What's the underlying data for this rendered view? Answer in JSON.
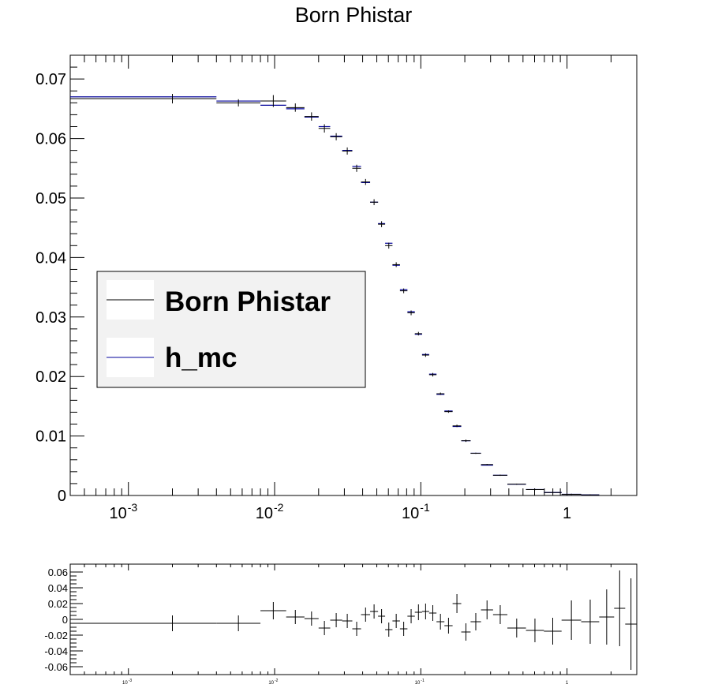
{
  "title": "Born Phistar",
  "colors": {
    "data": "#000000",
    "mc": "#000099",
    "legend_bg": "#f2f2f2",
    "frame": "#000000"
  },
  "chart_data": [
    {
      "type": "line",
      "title": "Born Phistar",
      "xscale": "log",
      "xlim": [
        0.0004,
        3.0
      ],
      "ylim": [
        0,
        0.074
      ],
      "x_ticks": [
        {
          "value": 0.001,
          "base": "10",
          "exp": "-3"
        },
        {
          "value": 0.01,
          "base": "10",
          "exp": "-2"
        },
        {
          "value": 0.1,
          "base": "10",
          "exp": "-1"
        },
        {
          "value": 1,
          "base": "1",
          "exp": ""
        }
      ],
      "y_ticks": [
        "0",
        "0.01",
        "0.02",
        "0.03",
        "0.04",
        "0.05",
        "0.06",
        "0.07"
      ],
      "legend": {
        "placement": "left-middle",
        "entries": [
          "Born Phistar",
          "h_mc"
        ]
      },
      "series": [
        {
          "name": "Born Phistar",
          "bins": [
            {
              "lo": 0.0,
              "hi": 0.004,
              "y": 0.0667,
              "err": 0.0008
            },
            {
              "lo": 0.004,
              "hi": 0.008,
              "y": 0.066,
              "err": 0.0006
            },
            {
              "lo": 0.008,
              "hi": 0.012,
              "y": 0.0663,
              "err": 0.001
            },
            {
              "lo": 0.012,
              "hi": 0.016,
              "y": 0.0652,
              "err": 0.0007
            },
            {
              "lo": 0.016,
              "hi": 0.02,
              "y": 0.0637,
              "err": 0.0007
            },
            {
              "lo": 0.02,
              "hi": 0.024,
              "y": 0.0617,
              "err": 0.0007
            },
            {
              "lo": 0.024,
              "hi": 0.029,
              "y": 0.0603,
              "err": 0.0006
            },
            {
              "lo": 0.029,
              "hi": 0.034,
              "y": 0.0579,
              "err": 0.0006
            },
            {
              "lo": 0.034,
              "hi": 0.039,
              "y": 0.055,
              "err": 0.0006
            },
            {
              "lo": 0.039,
              "hi": 0.045,
              "y": 0.0527,
              "err": 0.0005
            },
            {
              "lo": 0.045,
              "hi": 0.051,
              "y": 0.0493,
              "err": 0.0005
            },
            {
              "lo": 0.051,
              "hi": 0.057,
              "y": 0.0456,
              "err": 0.0005
            },
            {
              "lo": 0.057,
              "hi": 0.064,
              "y": 0.042,
              "err": 0.0005
            },
            {
              "lo": 0.064,
              "hi": 0.072,
              "y": 0.0388,
              "err": 0.0004
            },
            {
              "lo": 0.072,
              "hi": 0.081,
              "y": 0.0344,
              "err": 0.0004
            },
            {
              "lo": 0.081,
              "hi": 0.091,
              "y": 0.0307,
              "err": 0.0004
            },
            {
              "lo": 0.091,
              "hi": 0.102,
              "y": 0.0272,
              "err": 0.0003
            },
            {
              "lo": 0.102,
              "hi": 0.114,
              "y": 0.0236,
              "err": 0.0003
            },
            {
              "lo": 0.114,
              "hi": 0.128,
              "y": 0.0203,
              "err": 0.0003
            },
            {
              "lo": 0.128,
              "hi": 0.145,
              "y": 0.0171,
              "err": 0.0002
            },
            {
              "lo": 0.145,
              "hi": 0.165,
              "y": 0.0141,
              "err": 0.0002
            },
            {
              "lo": 0.165,
              "hi": 0.189,
              "y": 0.0117,
              "err": 0.0002
            },
            {
              "lo": 0.189,
              "hi": 0.219,
              "y": 0.0092,
              "err": 0.0002
            },
            {
              "lo": 0.219,
              "hi": 0.258,
              "y": 0.0071,
              "err": 0.0001
            },
            {
              "lo": 0.258,
              "hi": 0.312,
              "y": 0.0052,
              "err": 0.0001
            },
            {
              "lo": 0.312,
              "hi": 0.391,
              "y": 0.0034,
              "err": 0.0001
            },
            {
              "lo": 0.391,
              "hi": 0.524,
              "y": 0.0019,
              "err": 0.0001
            },
            {
              "lo": 0.524,
              "hi": 0.695,
              "y": 0.001,
              "err": 0.0001
            },
            {
              "lo": 0.695,
              "hi": 0.918,
              "y": 0.0005,
              "err": 0.0001
            },
            {
              "lo": 0.918,
              "hi": 1.25,
              "y": 0.0002,
              "err": 0.0001
            },
            {
              "lo": 1.25,
              "hi": 1.66,
              "y": 0.0001,
              "err": 0.0001
            }
          ]
        },
        {
          "name": "h_mc",
          "bins": [
            {
              "lo": 0.0,
              "hi": 0.004,
              "y": 0.067
            },
            {
              "lo": 0.004,
              "hi": 0.008,
              "y": 0.0663
            },
            {
              "lo": 0.008,
              "hi": 0.012,
              "y": 0.0656
            },
            {
              "lo": 0.012,
              "hi": 0.016,
              "y": 0.065
            },
            {
              "lo": 0.016,
              "hi": 0.02,
              "y": 0.0636
            },
            {
              "lo": 0.02,
              "hi": 0.024,
              "y": 0.062
            },
            {
              "lo": 0.024,
              "hi": 0.029,
              "y": 0.0604
            },
            {
              "lo": 0.029,
              "hi": 0.034,
              "y": 0.058
            },
            {
              "lo": 0.034,
              "hi": 0.039,
              "y": 0.0553
            },
            {
              "lo": 0.039,
              "hi": 0.045,
              "y": 0.0526
            },
            {
              "lo": 0.045,
              "hi": 0.051,
              "y": 0.0493
            },
            {
              "lo": 0.051,
              "hi": 0.057,
              "y": 0.0457
            },
            {
              "lo": 0.057,
              "hi": 0.064,
              "y": 0.0424
            },
            {
              "lo": 0.064,
              "hi": 0.072,
              "y": 0.0387
            },
            {
              "lo": 0.072,
              "hi": 0.081,
              "y": 0.0346
            },
            {
              "lo": 0.081,
              "hi": 0.091,
              "y": 0.0309
            },
            {
              "lo": 0.091,
              "hi": 0.102,
              "y": 0.0271
            },
            {
              "lo": 0.102,
              "hi": 0.114,
              "y": 0.0237
            },
            {
              "lo": 0.114,
              "hi": 0.128,
              "y": 0.0204
            },
            {
              "lo": 0.128,
              "hi": 0.145,
              "y": 0.017
            },
            {
              "lo": 0.145,
              "hi": 0.165,
              "y": 0.0142
            },
            {
              "lo": 0.165,
              "hi": 0.189,
              "y": 0.0116
            },
            {
              "lo": 0.189,
              "hi": 0.219,
              "y": 0.0092
            },
            {
              "lo": 0.219,
              "hi": 0.258,
              "y": 0.0071
            },
            {
              "lo": 0.258,
              "hi": 0.312,
              "y": 0.0051
            },
            {
              "lo": 0.312,
              "hi": 0.391,
              "y": 0.0034
            },
            {
              "lo": 0.391,
              "hi": 0.524,
              "y": 0.0019
            },
            {
              "lo": 0.524,
              "hi": 0.695,
              "y": 0.001
            },
            {
              "lo": 0.695,
              "hi": 0.918,
              "y": 0.0005
            },
            {
              "lo": 0.918,
              "hi": 1.25,
              "y": 0.0002
            },
            {
              "lo": 1.25,
              "hi": 1.66,
              "y": 0.0001
            }
          ]
        }
      ]
    },
    {
      "type": "scatter",
      "xscale": "log",
      "xlim": [
        0.0004,
        3.0
      ],
      "ylim": [
        -0.07,
        0.07
      ],
      "y_ticks": [
        "0.06",
        "0.04",
        "0.02",
        "0",
        "-0.02",
        "-0.04",
        "-0.06"
      ],
      "y_tick_values": [
        0.06,
        0.04,
        0.02,
        0,
        -0.02,
        -0.04,
        -0.06
      ],
      "x_ticks": [
        {
          "value": 0.001,
          "base": "10",
          "exp": "-3"
        },
        {
          "value": 0.01,
          "base": "10",
          "exp": "-2"
        },
        {
          "value": 0.1,
          "base": "10",
          "exp": "-1"
        },
        {
          "value": 1,
          "base": "1",
          "exp": ""
        }
      ],
      "points": [
        {
          "lo": 0.0,
          "hi": 0.004,
          "y": -0.005,
          "err": 0.01
        },
        {
          "lo": 0.004,
          "hi": 0.008,
          "y": -0.005,
          "err": 0.01
        },
        {
          "lo": 0.008,
          "hi": 0.012,
          "y": 0.011,
          "err": 0.011
        },
        {
          "lo": 0.012,
          "hi": 0.016,
          "y": 0.003,
          "err": 0.009
        },
        {
          "lo": 0.016,
          "hi": 0.02,
          "y": 0.001,
          "err": 0.009
        },
        {
          "lo": 0.02,
          "hi": 0.024,
          "y": -0.011,
          "err": 0.009
        },
        {
          "lo": 0.024,
          "hi": 0.029,
          "y": -0.001,
          "err": 0.009
        },
        {
          "lo": 0.029,
          "hi": 0.034,
          "y": -0.002,
          "err": 0.009
        },
        {
          "lo": 0.034,
          "hi": 0.039,
          "y": -0.012,
          "err": 0.009
        },
        {
          "lo": 0.039,
          "hi": 0.045,
          "y": 0.006,
          "err": 0.009
        },
        {
          "lo": 0.045,
          "hi": 0.051,
          "y": 0.01,
          "err": 0.009
        },
        {
          "lo": 0.051,
          "hi": 0.057,
          "y": 0.004,
          "err": 0.009
        },
        {
          "lo": 0.057,
          "hi": 0.064,
          "y": -0.013,
          "err": 0.009
        },
        {
          "lo": 0.064,
          "hi": 0.072,
          "y": -0.002,
          "err": 0.009
        },
        {
          "lo": 0.072,
          "hi": 0.081,
          "y": -0.012,
          "err": 0.009
        },
        {
          "lo": 0.081,
          "hi": 0.091,
          "y": 0.004,
          "err": 0.009
        },
        {
          "lo": 0.091,
          "hi": 0.102,
          "y": 0.009,
          "err": 0.01
        },
        {
          "lo": 0.102,
          "hi": 0.114,
          "y": 0.01,
          "err": 0.01
        },
        {
          "lo": 0.114,
          "hi": 0.128,
          "y": 0.008,
          "err": 0.01
        },
        {
          "lo": 0.128,
          "hi": 0.145,
          "y": -0.003,
          "err": 0.01
        },
        {
          "lo": 0.145,
          "hi": 0.165,
          "y": -0.008,
          "err": 0.01
        },
        {
          "lo": 0.165,
          "hi": 0.189,
          "y": 0.02,
          "err": 0.012
        },
        {
          "lo": 0.189,
          "hi": 0.219,
          "y": -0.016,
          "err": 0.011
        },
        {
          "lo": 0.219,
          "hi": 0.258,
          "y": -0.003,
          "err": 0.011
        },
        {
          "lo": 0.258,
          "hi": 0.312,
          "y": 0.012,
          "err": 0.012
        },
        {
          "lo": 0.312,
          "hi": 0.391,
          "y": 0.006,
          "err": 0.012
        },
        {
          "lo": 0.391,
          "hi": 0.524,
          "y": -0.011,
          "err": 0.012
        },
        {
          "lo": 0.524,
          "hi": 0.695,
          "y": -0.014,
          "err": 0.015
        },
        {
          "lo": 0.695,
          "hi": 0.918,
          "y": -0.015,
          "err": 0.017
        },
        {
          "lo": 0.918,
          "hi": 1.25,
          "y": -0.001,
          "err": 0.025
        },
        {
          "lo": 1.25,
          "hi": 1.66,
          "y": -0.003,
          "err": 0.028
        },
        {
          "lo": 1.66,
          "hi": 2.1,
          "y": 0.003,
          "err": 0.035
        },
        {
          "lo": 2.1,
          "hi": 2.5,
          "y": 0.014,
          "err": 0.048
        },
        {
          "lo": 2.5,
          "hi": 3.0,
          "y": -0.006,
          "err": 0.058
        }
      ]
    }
  ]
}
